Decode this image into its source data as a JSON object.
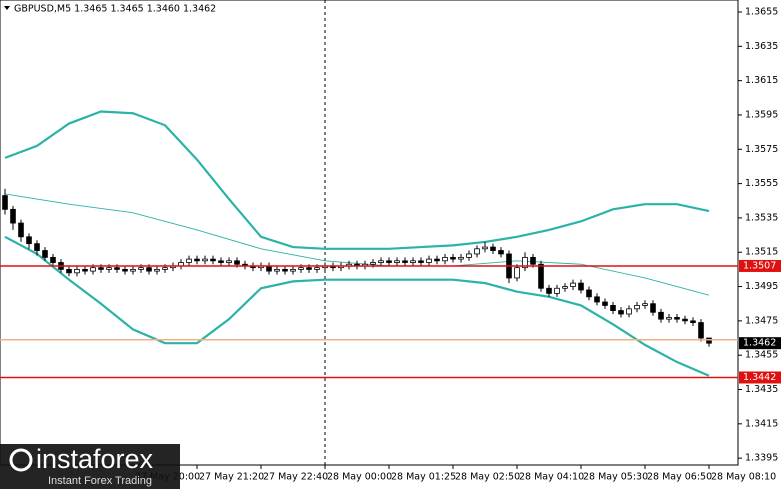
{
  "chart_data": {
    "type": "candlestick",
    "title": "GBPUSD,M5  1.3465 1.3465 1.3460 1.3462",
    "candles": [
      [
        1.3548,
        1.3552,
        1.3537,
        1.354
      ],
      [
        1.354,
        1.3542,
        1.3528,
        1.3532
      ],
      [
        1.3532,
        1.3534,
        1.3521,
        1.3524
      ],
      [
        1.3524,
        1.3526,
        1.3517,
        1.352
      ],
      [
        1.352,
        1.3522,
        1.3513,
        1.3516
      ],
      [
        1.3516,
        1.3518,
        1.351,
        1.3512
      ],
      [
        1.3512,
        1.3514,
        1.3507,
        1.3509
      ],
      [
        1.3509,
        1.3511,
        1.3503,
        1.3505
      ],
      [
        1.3505,
        1.3507,
        1.3501,
        1.3503
      ],
      [
        1.3503,
        1.3507,
        1.3501,
        1.3505
      ],
      [
        1.3505,
        1.3507,
        1.3502,
        1.3504
      ],
      [
        1.3504,
        1.3508,
        1.3502,
        1.3506
      ],
      [
        1.3506,
        1.3508,
        1.3503,
        1.3505
      ],
      [
        1.3505,
        1.3508,
        1.3503,
        1.3506
      ],
      [
        1.3506,
        1.3508,
        1.3503,
        1.3505
      ],
      [
        1.3505,
        1.3507,
        1.3502,
        1.3504
      ],
      [
        1.3504,
        1.3507,
        1.3502,
        1.3505
      ],
      [
        1.3505,
        1.3508,
        1.3503,
        1.3506
      ],
      [
        1.3506,
        1.3508,
        1.3502,
        1.3504
      ],
      [
        1.3504,
        1.3507,
        1.3502,
        1.3505
      ],
      [
        1.3505,
        1.3508,
        1.3503,
        1.3506
      ],
      [
        1.3506,
        1.3509,
        1.3504,
        1.3507
      ],
      [
        1.3507,
        1.3511,
        1.3505,
        1.3509
      ],
      [
        1.3509,
        1.3513,
        1.3507,
        1.3511
      ],
      [
        1.3511,
        1.3513,
        1.3508,
        1.351
      ],
      [
        1.351,
        1.3513,
        1.3508,
        1.3511
      ],
      [
        1.3511,
        1.3513,
        1.3508,
        1.351
      ],
      [
        1.351,
        1.3512,
        1.3507,
        1.3509
      ],
      [
        1.3509,
        1.3512,
        1.3507,
        1.351
      ],
      [
        1.351,
        1.3512,
        1.3506,
        1.3508
      ],
      [
        1.3508,
        1.351,
        1.3505,
        1.3507
      ],
      [
        1.3507,
        1.3509,
        1.3504,
        1.3506
      ],
      [
        1.3506,
        1.3509,
        1.3504,
        1.3507
      ],
      [
        1.3507,
        1.3509,
        1.3502,
        1.3504
      ],
      [
        1.3504,
        1.3507,
        1.3502,
        1.3505
      ],
      [
        1.3505,
        1.3507,
        1.3502,
        1.3504
      ],
      [
        1.3504,
        1.3507,
        1.3502,
        1.3505
      ],
      [
        1.3505,
        1.3508,
        1.3503,
        1.3506
      ],
      [
        1.3506,
        1.3508,
        1.3503,
        1.3505
      ],
      [
        1.3505,
        1.3508,
        1.3503,
        1.3506
      ],
      [
        1.3506,
        1.3509,
        1.3504,
        1.3507
      ],
      [
        1.3507,
        1.3509,
        1.3504,
        1.3506
      ],
      [
        1.3506,
        1.3509,
        1.3504,
        1.3507
      ],
      [
        1.3507,
        1.351,
        1.3505,
        1.3508
      ],
      [
        1.3508,
        1.351,
        1.3505,
        1.3507
      ],
      [
        1.3507,
        1.351,
        1.3505,
        1.3508
      ],
      [
        1.3508,
        1.3511,
        1.3506,
        1.3509
      ],
      [
        1.3509,
        1.3512,
        1.3507,
        1.351
      ],
      [
        1.351,
        1.3512,
        1.3507,
        1.3509
      ],
      [
        1.3509,
        1.3512,
        1.3507,
        1.351
      ],
      [
        1.351,
        1.3512,
        1.3507,
        1.3509
      ],
      [
        1.3509,
        1.3512,
        1.3507,
        1.351
      ],
      [
        1.351,
        1.3512,
        1.3507,
        1.3509
      ],
      [
        1.3509,
        1.3513,
        1.3507,
        1.3511
      ],
      [
        1.3511,
        1.3513,
        1.3508,
        1.351
      ],
      [
        1.351,
        1.3514,
        1.3508,
        1.3512
      ],
      [
        1.3512,
        1.3514,
        1.3509,
        1.3511
      ],
      [
        1.3511,
        1.3514,
        1.3509,
        1.3512
      ],
      [
        1.3512,
        1.3516,
        1.351,
        1.3514
      ],
      [
        1.3514,
        1.3519,
        1.3512,
        1.3517
      ],
      [
        1.3517,
        1.3521,
        1.3515,
        1.3518
      ],
      [
        1.3518,
        1.352,
        1.3514,
        1.3516
      ],
      [
        1.3516,
        1.3518,
        1.3512,
        1.3514
      ],
      [
        1.3514,
        1.3516,
        1.3497,
        1.35
      ],
      [
        1.35,
        1.3508,
        1.3498,
        1.3506
      ],
      [
        1.3506,
        1.3515,
        1.3504,
        1.3512
      ],
      [
        1.3512,
        1.3514,
        1.3506,
        1.3508
      ],
      [
        1.3508,
        1.351,
        1.3492,
        1.3494
      ],
      [
        1.3494,
        1.3496,
        1.3489,
        1.3491
      ],
      [
        1.3491,
        1.3496,
        1.3489,
        1.3494
      ],
      [
        1.3494,
        1.3497,
        1.3492,
        1.3495
      ],
      [
        1.3495,
        1.3499,
        1.3493,
        1.3497
      ],
      [
        1.3497,
        1.3499,
        1.3491,
        1.3493
      ],
      [
        1.3493,
        1.3495,
        1.3487,
        1.3489
      ],
      [
        1.3489,
        1.3491,
        1.3484,
        1.3486
      ],
      [
        1.3486,
        1.3488,
        1.3482,
        1.3484
      ],
      [
        1.3484,
        1.3486,
        1.3479,
        1.3481
      ],
      [
        1.3481,
        1.3483,
        1.3477,
        1.3479
      ],
      [
        1.3479,
        1.3484,
        1.3477,
        1.3482
      ],
      [
        1.3482,
        1.3486,
        1.348,
        1.3484
      ],
      [
        1.3484,
        1.3487,
        1.3482,
        1.3485
      ],
      [
        1.3485,
        1.3487,
        1.3478,
        1.348
      ],
      [
        1.348,
        1.3482,
        1.3474,
        1.3476
      ],
      [
        1.3476,
        1.3479,
        1.3474,
        1.3477
      ],
      [
        1.3477,
        1.3479,
        1.3474,
        1.3476
      ],
      [
        1.3476,
        1.3478,
        1.3473,
        1.3475
      ],
      [
        1.3475,
        1.3477,
        1.3472,
        1.3474
      ],
      [
        1.3474,
        1.3476,
        1.3463,
        1.3465
      ],
      [
        1.3465,
        1.3465,
        1.346,
        1.3462
      ]
    ],
    "bull_color": "#ffffff",
    "bear_color": "#000000",
    "series": [
      {
        "color": "#2ab3a6",
        "width": 2.2,
        "x": [
          0,
          4,
          8,
          12,
          16,
          20,
          24,
          28,
          32,
          36,
          40,
          44,
          48,
          52,
          56,
          60,
          64,
          68,
          72,
          76,
          80,
          84,
          88
        ],
        "values": [
          1.357,
          1.3577,
          1.359,
          1.3597,
          1.3596,
          1.3589,
          1.3569,
          1.3546,
          1.3524,
          1.3518,
          1.3517,
          1.3517,
          1.3517,
          1.3518,
          1.3519,
          1.3521,
          1.3524,
          1.3528,
          1.3533,
          1.354,
          1.3543,
          1.3543,
          1.3539
        ]
      },
      {
        "color": "#2ab3a6",
        "width": 2.2,
        "x": [
          0,
          4,
          8,
          12,
          16,
          20,
          24,
          28,
          32,
          36,
          40,
          44,
          48,
          52,
          56,
          60,
          64,
          68,
          72,
          76,
          80,
          84,
          88
        ],
        "values": [
          1.3524,
          1.3514,
          1.3499,
          1.3485,
          1.347,
          1.3462,
          1.3462,
          1.3476,
          1.3494,
          1.3498,
          1.3499,
          1.3499,
          1.3499,
          1.3499,
          1.3499,
          1.3497,
          1.3492,
          1.3489,
          1.3484,
          1.3473,
          1.3461,
          1.3451,
          1.3443
        ]
      },
      {
        "color": "#2ab3a6",
        "width": 0.9,
        "x": [
          0,
          8,
          16,
          24,
          32,
          40,
          48,
          56,
          64,
          72,
          80,
          88
        ],
        "values": [
          1.3549,
          1.3543,
          1.3538,
          1.3528,
          1.3517,
          1.351,
          1.3507,
          1.3507,
          1.351,
          1.3508,
          1.35,
          1.349
        ]
      }
    ],
    "levels": [
      {
        "value": 1.3507,
        "color": "#e01010",
        "tag": true
      },
      {
        "value": 1.3442,
        "color": "#e01010",
        "tag": true
      },
      {
        "value": 1.3464,
        "color": "#f0b080",
        "tag": false
      }
    ],
    "last_tag_color": "#000000",
    "xlim": [
      -0.625,
      91.625
    ],
    "xticks": [
      {
        "value": 16,
        "label": "27 May 20:00"
      },
      {
        "value": 24,
        "label": "27 May 21:20"
      },
      {
        "value": 32,
        "label": "27 May 22:40"
      },
      {
        "value": 40,
        "label": "28 May 00:00"
      },
      {
        "value": 48,
        "label": "28 May 01:25"
      },
      {
        "value": 56,
        "label": "28 May 02:50"
      },
      {
        "value": 64,
        "label": "28 May 04:10"
      },
      {
        "value": 72,
        "label": "28 May 05:30"
      },
      {
        "value": 80,
        "label": "28 May 06:50"
      },
      {
        "value": 88,
        "label": "28 May 08:10"
      }
    ],
    "ylim": [
      1.3391,
      1.3662
    ],
    "yticks": [
      1.3655,
      1.3635,
      1.3615,
      1.3595,
      1.3575,
      1.3555,
      1.3535,
      1.3515,
      1.3495,
      1.3475,
      1.3455,
      1.3435,
      1.3415,
      1.3395
    ]
  },
  "watermark": {
    "brand": "instaforex",
    "tagline": "Instant Forex Trading"
  }
}
